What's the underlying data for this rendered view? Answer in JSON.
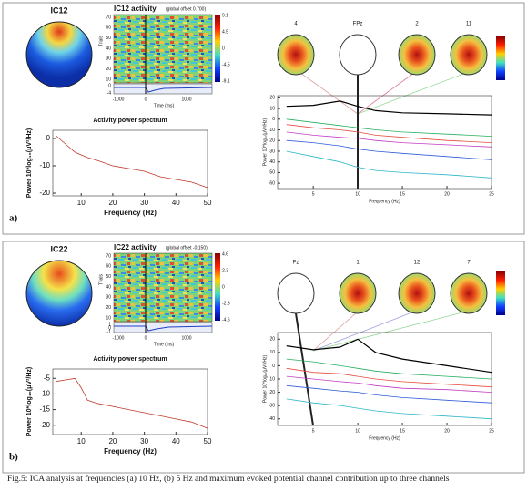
{
  "panels": [
    {
      "label": "a)",
      "component": "IC12",
      "activity_title": "IC12 activity",
      "offset": "(global offset 0.700)",
      "trials_label": "Trials",
      "trial_ticks": [
        "70",
        "60",
        "50",
        "40",
        "30",
        "20",
        "10"
      ],
      "erp_ticks": [
        "0",
        "-4"
      ],
      "colorbar_ticks": [
        "9.1",
        "4.5",
        "0",
        "-4.5",
        "-9.1"
      ],
      "time_ticks": [
        "-1000",
        "0",
        "1000"
      ],
      "time_label": "Time (ms)",
      "maps": [
        "4",
        "FPz",
        "2",
        "11"
      ]
    },
    {
      "label": "b)",
      "component": "IC22",
      "activity_title": "IC22 activity",
      "offset": "(global offset -0.150)",
      "trials_label": "Trials",
      "trial_ticks": [
        "70",
        "60",
        "50",
        "40",
        "30",
        "20",
        "10"
      ],
      "erp_ticks": [
        "1",
        "0",
        "-1"
      ],
      "colorbar_ticks": [
        "4.6",
        "2.3",
        "0",
        "-2.3",
        "-4.6"
      ],
      "time_ticks": [
        "-1000",
        "0",
        "1000"
      ],
      "time_label": "Time (ms)",
      "maps": [
        "Fz",
        "1",
        "12",
        "7"
      ]
    }
  ],
  "chart_data": [
    {
      "type": "line",
      "title": "Activity power spectrum",
      "x_label": "Frequency (Hz)",
      "y_label": "Power 10*log₁₀(μV²/Hz)",
      "x": [
        2,
        5,
        8,
        10,
        12,
        15,
        20,
        25,
        30,
        35,
        40,
        45,
        50
      ],
      "series": [
        {
          "color": "#c0392b",
          "values": [
            1,
            -2,
            -5,
            -6,
            -7,
            -8,
            -10,
            -11,
            -12,
            -14,
            -15,
            -16,
            -18
          ]
        }
      ],
      "xlim": [
        1,
        50
      ],
      "ylim": [
        -21,
        3
      ],
      "xticks": [
        10,
        20,
        30,
        40,
        50
      ],
      "yticks": [
        0,
        -10,
        -20
      ]
    },
    {
      "type": "line",
      "x_label": "Frequency (Hz)",
      "y_label": "Power 10*log₁₀(μV²/Hz)",
      "x": [
        2,
        5,
        8,
        10,
        12,
        15,
        20,
        25
      ],
      "series": [
        {
          "color": "#e74c3c",
          "values": [
            -5,
            -8,
            -10,
            -12,
            -15,
            -17,
            -20,
            -22
          ]
        },
        {
          "color": "#27ae60",
          "values": [
            0,
            -3,
            -6,
            -8,
            -10,
            -12,
            -14,
            -16
          ]
        },
        {
          "color": "#2e5cd6",
          "values": [
            -20,
            -22,
            -25,
            -28,
            -30,
            -32,
            -35,
            -38
          ]
        },
        {
          "color": "#c33bc3",
          "values": [
            -12,
            -15,
            -17,
            -18,
            -20,
            -22,
            -24,
            -26
          ]
        },
        {
          "color": "#2bb6c9",
          "values": [
            -30,
            -35,
            -40,
            -45,
            -48,
            -50,
            -52,
            -55
          ]
        },
        {
          "color": "#000000",
          "values": [
            12,
            13,
            17,
            12,
            8,
            6,
            5,
            4
          ]
        }
      ],
      "xlim": [
        1,
        25
      ],
      "ylim": [
        -65,
        22
      ],
      "xticks": [
        5,
        10,
        15,
        20,
        25
      ],
      "yticks": [
        20,
        10,
        0,
        -10,
        -20,
        -30,
        -40,
        -50,
        -60
      ]
    },
    {
      "type": "line",
      "title": "Activity power spectrum",
      "x_label": "Frequency (Hz)",
      "y_label": "Power 10*log₁₀(μV²/Hz)",
      "x": [
        2,
        5,
        8,
        10,
        12,
        15,
        20,
        25,
        30,
        35,
        40,
        45,
        50
      ],
      "series": [
        {
          "color": "#c0392b",
          "values": [
            -6,
            -5.5,
            -5,
            -8,
            -12,
            -13,
            -14,
            -15,
            -16,
            -17,
            -18,
            -19,
            -21
          ]
        }
      ],
      "xlim": [
        1,
        50
      ],
      "ylim": [
        -23,
        -2
      ],
      "xticks": [
        10,
        20,
        30,
        40,
        50
      ],
      "yticks": [
        -5,
        -10,
        -15,
        -20
      ]
    },
    {
      "type": "line",
      "x_label": "Frequency (Hz)",
      "y_label": "Power 10*log₁₀(μV²/Hz)",
      "x": [
        2,
        5,
        8,
        10,
        12,
        15,
        20,
        25
      ],
      "series": [
        {
          "color": "#e74c3c",
          "values": [
            -2,
            -5,
            -6,
            -8,
            -10,
            -12,
            -14,
            -16
          ]
        },
        {
          "color": "#27ae60",
          "values": [
            5,
            3,
            0,
            -2,
            -4,
            -6,
            -8,
            -10
          ]
        },
        {
          "color": "#2e5cd6",
          "values": [
            -15,
            -17,
            -19,
            -20,
            -22,
            -24,
            -26,
            -28
          ]
        },
        {
          "color": "#c33bc3",
          "values": [
            -8,
            -10,
            -12,
            -13,
            -15,
            -17,
            -18,
            -20
          ]
        },
        {
          "color": "#2bb6c9",
          "values": [
            -25,
            -28,
            -30,
            -32,
            -34,
            -36,
            -38,
            -40
          ]
        },
        {
          "color": "#000000",
          "values": [
            15,
            12,
            14,
            20,
            10,
            5,
            0,
            -5
          ]
        }
      ],
      "xlim": [
        1,
        25
      ],
      "ylim": [
        -45,
        25
      ],
      "xticks": [
        5,
        10,
        15,
        20,
        25
      ],
      "yticks": [
        20,
        10,
        0,
        -10,
        -20,
        -30,
        -40
      ]
    }
  ],
  "caption": "Fig.5: ICA analysis at frequencies (a) 10 Hz, (b) 5 Hz and maximum evoked potential channel contribution up to three channels"
}
